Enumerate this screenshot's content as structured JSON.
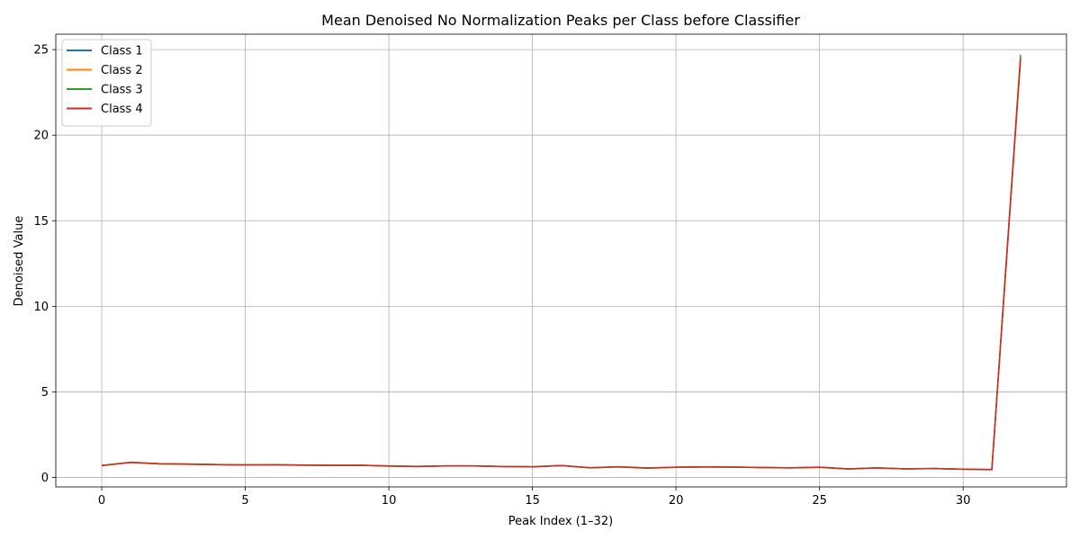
{
  "chart_data": {
    "type": "line",
    "title": "Mean Denoised No Normalization Peaks per Class before Classifier",
    "xlabel": "Peak Index (1–32)",
    "ylabel": "Denoised Value",
    "xlim": [
      -1.6,
      33.6
    ],
    "ylim": [
      -0.55,
      25.9
    ],
    "xticks": [
      0,
      5,
      10,
      15,
      20,
      25,
      30
    ],
    "yticks": [
      0,
      5,
      10,
      15,
      20,
      25
    ],
    "grid": true,
    "legend_position": "upper-left",
    "x": [
      0,
      1,
      2,
      3,
      4,
      5,
      6,
      7,
      8,
      9,
      10,
      11,
      12,
      13,
      14,
      15,
      16,
      17,
      18,
      19,
      20,
      21,
      22,
      23,
      24,
      25,
      26,
      27,
      28,
      29,
      30,
      31,
      32
    ],
    "series": [
      {
        "name": "Class 1",
        "color": "#1f77b4",
        "values": [
          0.7,
          0.88,
          0.8,
          0.78,
          0.75,
          0.73,
          0.74,
          0.72,
          0.71,
          0.71,
          0.67,
          0.64,
          0.68,
          0.67,
          0.64,
          0.62,
          0.7,
          0.57,
          0.62,
          0.55,
          0.6,
          0.62,
          0.61,
          0.58,
          0.56,
          0.6,
          0.5,
          0.56,
          0.5,
          0.52,
          0.48,
          0.46,
          24.5
        ]
      },
      {
        "name": "Class 2",
        "color": "#ff7f0e",
        "values": [
          0.69,
          0.87,
          0.79,
          0.77,
          0.75,
          0.73,
          0.74,
          0.72,
          0.7,
          0.71,
          0.66,
          0.64,
          0.67,
          0.67,
          0.63,
          0.62,
          0.69,
          0.56,
          0.62,
          0.55,
          0.59,
          0.61,
          0.6,
          0.58,
          0.56,
          0.59,
          0.49,
          0.55,
          0.5,
          0.52,
          0.48,
          0.45,
          24.4
        ]
      },
      {
        "name": "Class 3",
        "color": "#2ca02c",
        "values": [
          0.7,
          0.89,
          0.81,
          0.79,
          0.76,
          0.74,
          0.75,
          0.73,
          0.71,
          0.72,
          0.67,
          0.65,
          0.68,
          0.68,
          0.64,
          0.63,
          0.7,
          0.57,
          0.63,
          0.56,
          0.6,
          0.62,
          0.61,
          0.59,
          0.57,
          0.6,
          0.5,
          0.56,
          0.51,
          0.53,
          0.49,
          0.46,
          24.7
        ]
      },
      {
        "name": "Class 4",
        "color": "#d62728",
        "values": [
          0.7,
          0.88,
          0.8,
          0.78,
          0.75,
          0.73,
          0.74,
          0.72,
          0.71,
          0.71,
          0.67,
          0.64,
          0.68,
          0.67,
          0.64,
          0.62,
          0.7,
          0.57,
          0.62,
          0.55,
          0.6,
          0.62,
          0.61,
          0.58,
          0.56,
          0.6,
          0.5,
          0.56,
          0.5,
          0.52,
          0.48,
          0.46,
          24.5
        ]
      }
    ]
  }
}
